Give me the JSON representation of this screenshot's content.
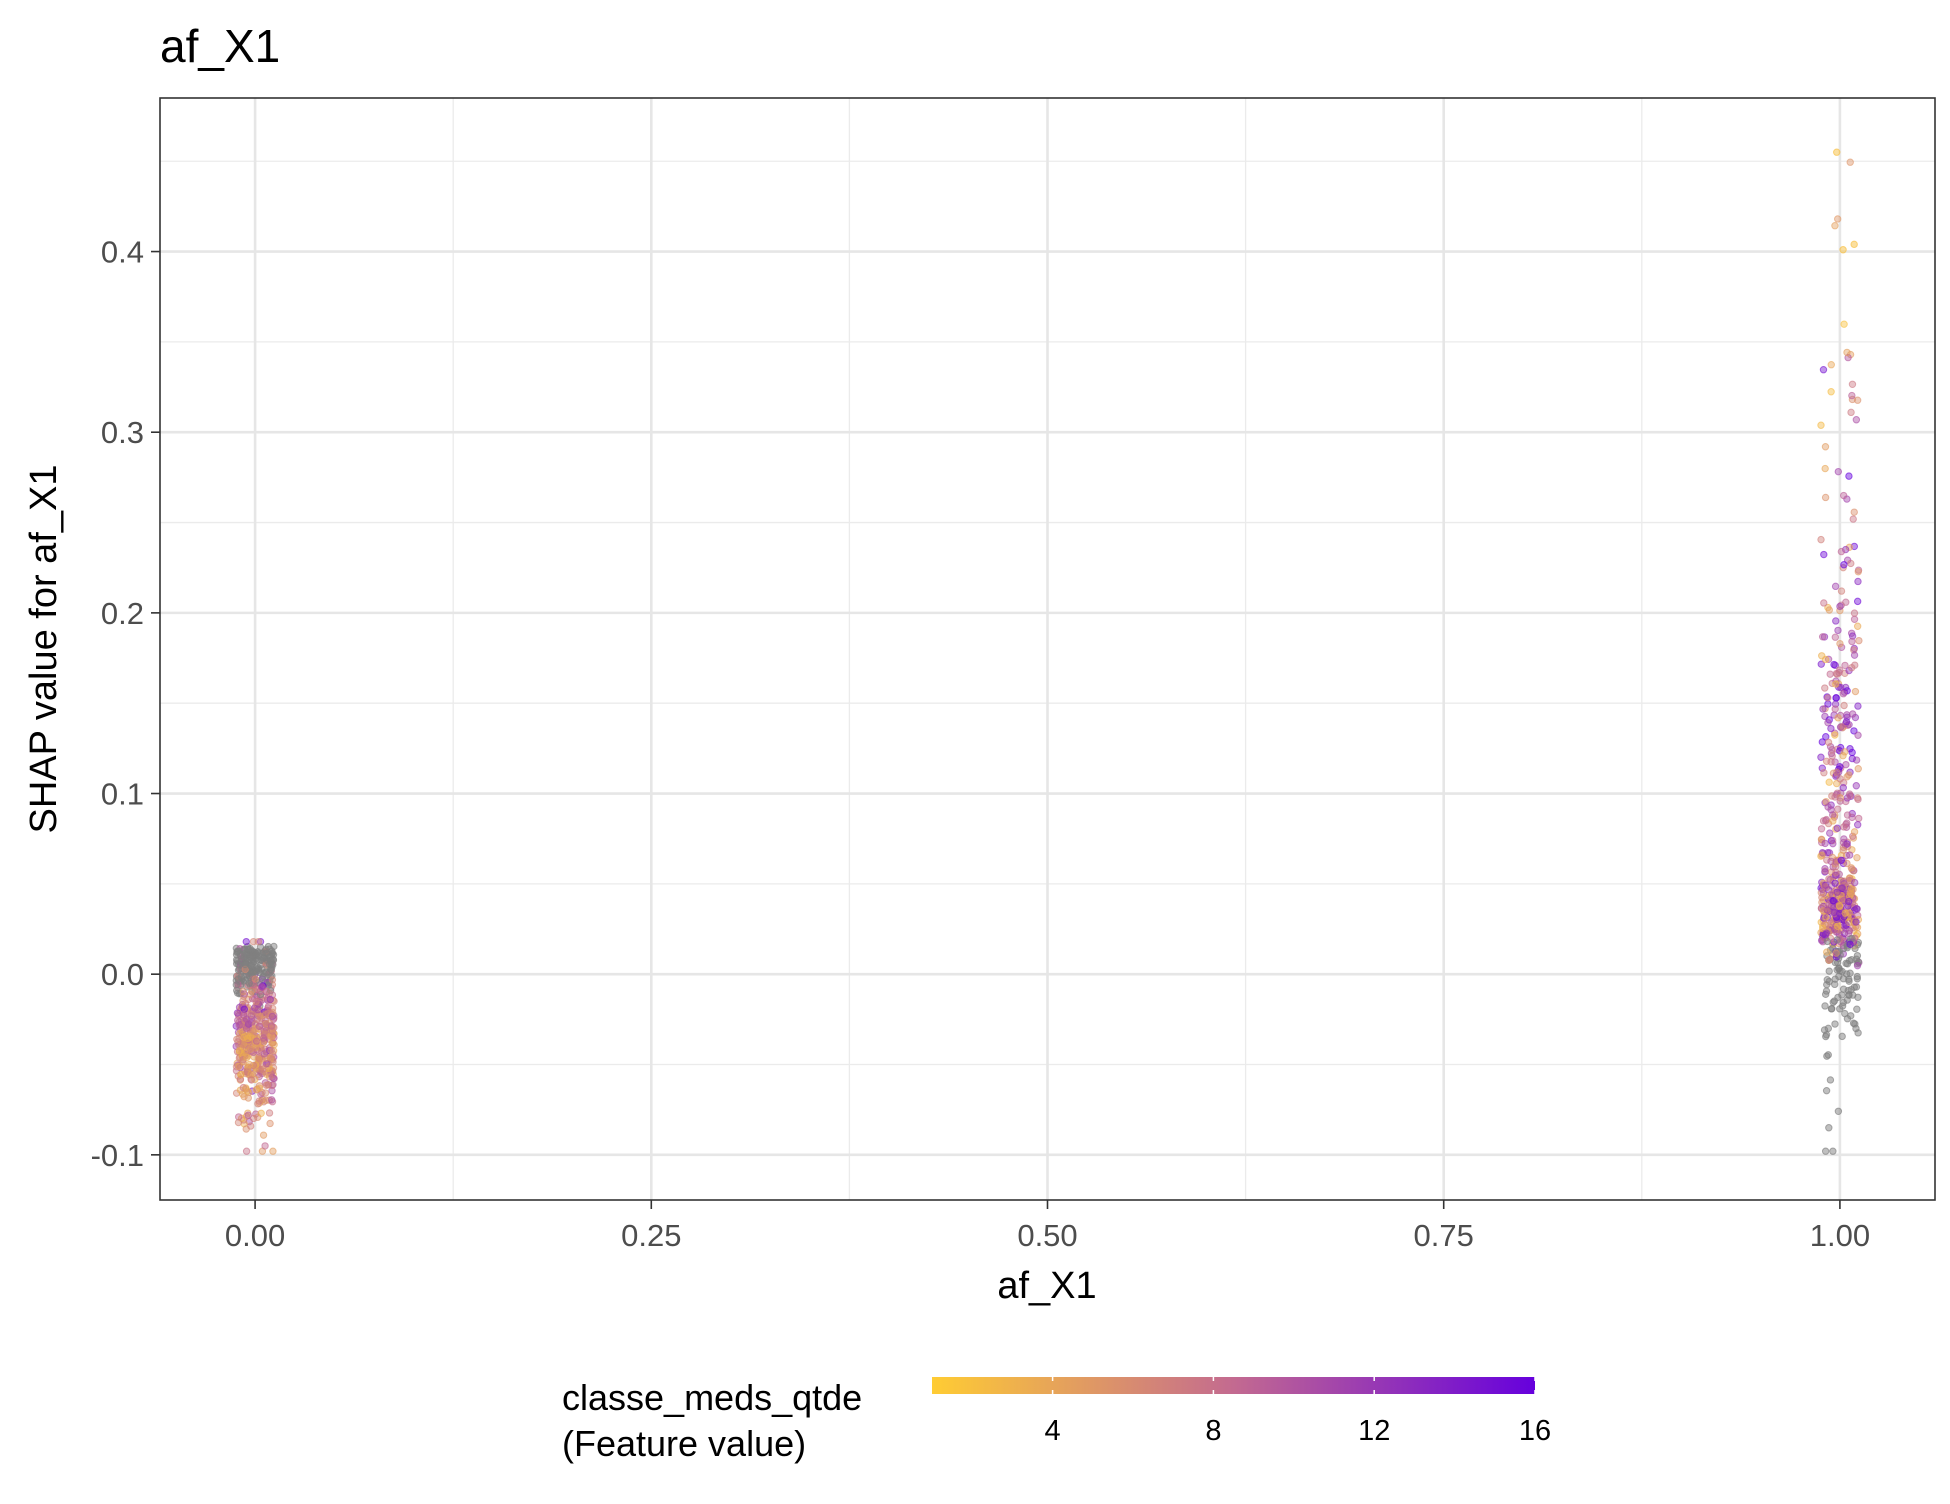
{
  "chart_data": {
    "type": "scatter",
    "title": "af_X1",
    "xlabel": "af_X1",
    "ylabel": "SHAP value for af_X1",
    "xlim": [
      -0.06,
      1.06
    ],
    "ylim": [
      -0.125,
      0.485
    ],
    "x_ticks": [
      0.0,
      0.25,
      0.5,
      0.75,
      1.0
    ],
    "x_tick_labels": [
      "0.00",
      "0.25",
      "0.50",
      "0.75",
      "1.00"
    ],
    "y_ticks": [
      -0.1,
      0.0,
      0.1,
      0.2,
      0.3,
      0.4
    ],
    "y_tick_labels": [
      "-0.1",
      "0.0",
      "0.1",
      "0.2",
      "0.3",
      "0.4"
    ],
    "grid": true,
    "legend": {
      "position": "bottom",
      "title_lines": [
        "classe_meds_qtde",
        "(Feature value)"
      ],
      "breaks": [
        4,
        8,
        12,
        16
      ],
      "break_labels": [
        "4",
        "8",
        "12",
        "16"
      ],
      "range": [
        1,
        16
      ],
      "low_color": "#FFCC33",
      "mid_color": "#C36A90",
      "high_color": "#6600DD"
    },
    "na_color": "#7F7F7F",
    "series": [
      {
        "x_center": 0.0,
        "y_center": -0.02,
        "y_range": [
          -0.098,
          0.018
        ],
        "n_points": 620,
        "note": "dense column; grey (NA) near 0, yellow-orange lower"
      },
      {
        "x_center": 1.0,
        "y_center": 0.04,
        "y_range": [
          -0.098,
          0.455
        ],
        "n_points": 620,
        "note": "tall column; dense near 0.03, grey below 0.02"
      }
    ]
  }
}
